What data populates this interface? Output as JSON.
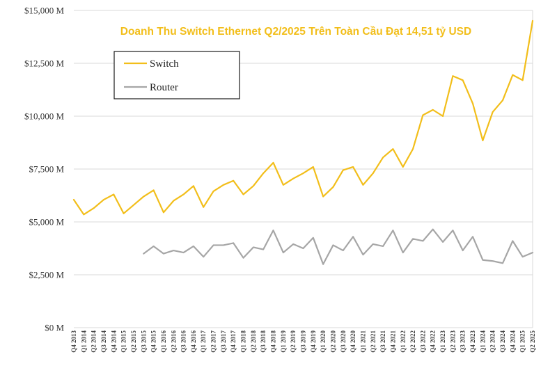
{
  "chart_data": {
    "type": "line",
    "title": "Doanh Thu Switch Ethernet Q2/2025 Trên Toàn Cầu Đạt 14,51 tỷ USD",
    "xlabel": "",
    "ylabel": "",
    "ylim": [
      0,
      15000
    ],
    "yticks": [
      0,
      2500,
      5000,
      7500,
      10000,
      12500,
      15000
    ],
    "ytick_labels": [
      "$0 M",
      "$2,500 M",
      "$5,000 M",
      "$7,500 M",
      "$10,000 M",
      "$12,500 M",
      "$15,000 M"
    ],
    "grid": true,
    "legend_position": "top-left",
    "categories": [
      "Q4 2013",
      "Q1 2014",
      "Q2 2014",
      "Q3 2014",
      "Q4 2014",
      "Q1 2015",
      "Q2 2015",
      "Q3 2015",
      "Q4 2015",
      "Q1 2016",
      "Q2 2016",
      "Q3 2016",
      "Q4 2016",
      "Q1 2017",
      "Q2 2017",
      "Q3 2017",
      "Q4 2017",
      "Q1 2018",
      "Q2 2018",
      "Q3 2018",
      "Q4 2018",
      "Q1 2019",
      "Q2 2019",
      "Q3 2019",
      "Q4 2019",
      "Q1 2020",
      "Q2 2020",
      "Q3 2020",
      "Q4 2020",
      "Q1 2021",
      "Q2 2021",
      "Q3 2021",
      "Q4 2021",
      "Q1 2022",
      "Q2 2022",
      "Q3 2022",
      "Q4 2022",
      "Q1 2023",
      "Q2 2023",
      "Q3 2023",
      "Q4 2023",
      "Q1 2024",
      "Q2 2024",
      "Q3 2024",
      "Q4 2024",
      "Q1 2025",
      "Q2 2025"
    ],
    "series": [
      {
        "name": "Switch",
        "color": "#F2BE1A",
        "values": [
          6050,
          5350,
          5650,
          6050,
          6300,
          5400,
          5800,
          6200,
          6500,
          5450,
          6000,
          6300,
          6700,
          5700,
          6450,
          6750,
          6950,
          6300,
          6700,
          7300,
          7800,
          6750,
          7050,
          7300,
          7600,
          6200,
          6650,
          7450,
          7600,
          6750,
          7300,
          8050,
          8450,
          7600,
          8450,
          10050,
          10300,
          10000,
          11900,
          11700,
          10600,
          8850,
          10200,
          10750,
          11950,
          11700,
          14510
        ]
      },
      {
        "name": "Router",
        "color": "#A6A6A6",
        "values": [
          null,
          null,
          null,
          null,
          null,
          null,
          null,
          3500,
          3850,
          3500,
          3650,
          3550,
          3850,
          3350,
          3900,
          3900,
          4000,
          3300,
          3800,
          3700,
          4600,
          3550,
          3950,
          3750,
          4250,
          3000,
          3900,
          3650,
          4300,
          3450,
          3950,
          3850,
          4600,
          3550,
          4200,
          4100,
          4650,
          4050,
          4600,
          3650,
          4300,
          3200,
          3150,
          3050,
          4100,
          3350,
          3550
        ]
      }
    ]
  }
}
